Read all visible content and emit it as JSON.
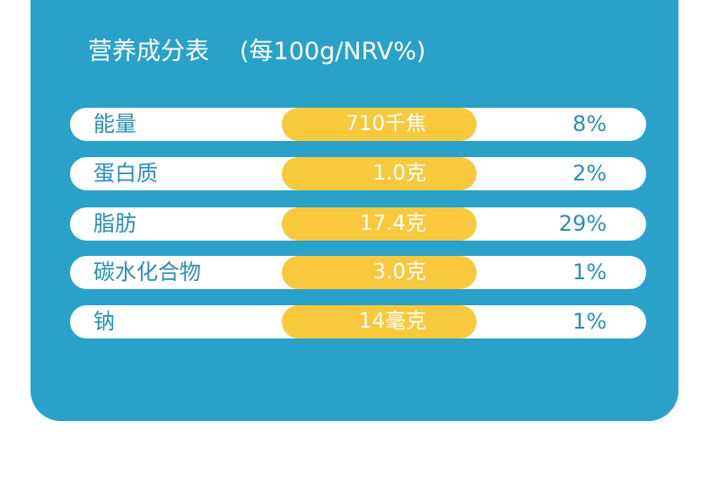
{
  "table": {
    "title": "营养成分表",
    "unit": "(每100g/NRV%)",
    "rows": [
      {
        "name": "能量",
        "amount": "710千焦",
        "nrv": "8%"
      },
      {
        "name": "蛋白质",
        "amount": "1.0克",
        "nrv": "2%"
      },
      {
        "name": "脂肪",
        "amount": "17.4克",
        "nrv": "29%"
      },
      {
        "name": "碳水化合物",
        "amount": "3.0克",
        "nrv": "1%"
      },
      {
        "name": "钠",
        "amount": "14毫克",
        "nrv": "1%"
      }
    ]
  },
  "colors": {
    "panel": "#2aa1c8",
    "amount_pill": "#f8c93d",
    "row_text": "#2b8fb6"
  }
}
